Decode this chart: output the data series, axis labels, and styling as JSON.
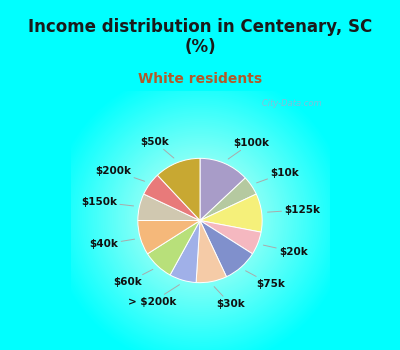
{
  "title": "Income distribution in Centenary, SC\n(%)",
  "subtitle": "White residents",
  "title_color": "#1a1a1a",
  "subtitle_color": "#b05a2a",
  "bg_cyan": "#00FFFF",
  "labels": [
    "$100k",
    "$10k",
    "$125k",
    "$20k",
    "$75k",
    "$30k",
    "> $200k",
    "$60k",
    "$40k",
    "$150k",
    "$200k",
    "$50k"
  ],
  "values": [
    13,
    5,
    10,
    6,
    9,
    8,
    7,
    8,
    9,
    7,
    6,
    12
  ],
  "colors": [
    "#a89cc8",
    "#b5c9a0",
    "#f5f07a",
    "#f5b8c0",
    "#8090cc",
    "#f5cba7",
    "#a0b0e8",
    "#b8e07a",
    "#f5b87a",
    "#d0c8b0",
    "#e87a7a",
    "#c8a832"
  ],
  "title_fontsize": 12,
  "subtitle_fontsize": 10,
  "label_fontsize": 7.5,
  "watermark": "   City-Data.com"
}
